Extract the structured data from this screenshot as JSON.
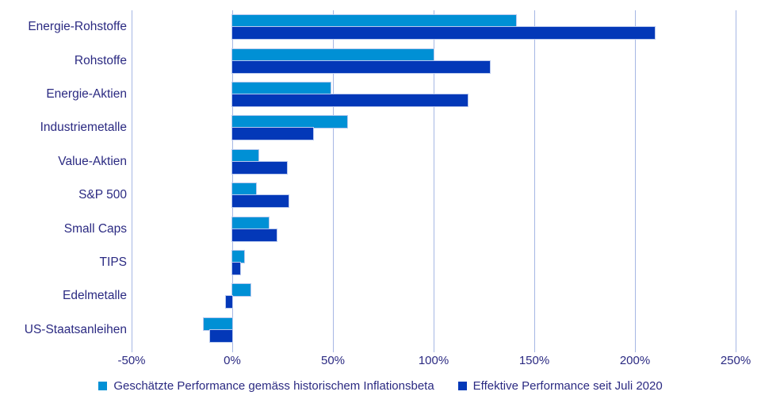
{
  "chart_data": {
    "type": "bar",
    "orientation": "horizontal",
    "title": "",
    "categories": [
      "Energie-Rohstoffe",
      "Rohstoffe",
      "Energie-Aktien",
      "Industriemetalle",
      "Value-Aktien",
      "S&P 500",
      "Small Caps",
      "TIPS",
      "Edelmetalle",
      "US-Staatsanleihen"
    ],
    "series": [
      {
        "name": "Geschätzte Performance gemäss historischem Inflationsbeta",
        "color": "#0090d5",
        "values": [
          141,
          100,
          49,
          57,
          13,
          12,
          18,
          6,
          9,
          -14
        ]
      },
      {
        "name": "Effektive Performance seit Juli 2020",
        "color": "#0338b8",
        "values": [
          210,
          128,
          117,
          40,
          27,
          28,
          22,
          4,
          -3,
          -11
        ]
      }
    ],
    "unit": "%",
    "xlim": [
      -50,
      250
    ],
    "x_ticks": [
      {
        "value": -50,
        "label": "-50%"
      },
      {
        "value": 0,
        "label": "0%"
      },
      {
        "value": 50,
        "label": "50%"
      },
      {
        "value": 100,
        "label": "100%"
      },
      {
        "value": 150,
        "label": "150%"
      },
      {
        "value": 200,
        "label": "200%"
      },
      {
        "value": 250,
        "label": "250%"
      }
    ],
    "grid": true,
    "legend_position": "bottom"
  },
  "style": {
    "background": "#ffffff",
    "grid_color": "#a6b7e4",
    "text_color": "#2b2a82",
    "bar_outline_color": "#b9c9ee"
  }
}
